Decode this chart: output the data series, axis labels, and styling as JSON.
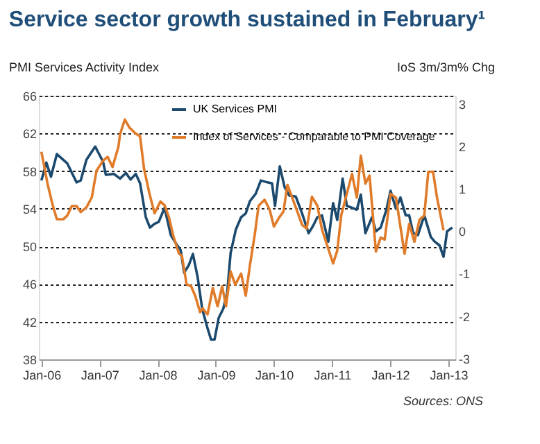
{
  "chart_data": {
    "type": "line",
    "title": "Service sector growth sustained in February¹",
    "ylabel": "PMI Services Activity Index",
    "y2label": "IoS 3m/3m% Chg",
    "annotations": [
      "Sources: ONS"
    ],
    "xlim": [
      "2005-12-16",
      "2013-02-14"
    ],
    "xticks": [
      {
        "value": "2006-01",
        "label": "Jan-06"
      },
      {
        "value": "2007-01",
        "label": "Jan-07"
      },
      {
        "value": "2008-01",
        "label": "Jan-08"
      },
      {
        "value": "2009-01",
        "label": "Jan-09"
      },
      {
        "value": "2010-01",
        "label": "Jan-10"
      },
      {
        "value": "2011-01",
        "label": "Jan-11"
      },
      {
        "value": "2012-01",
        "label": "Jan-12"
      },
      {
        "value": "2013-01",
        "label": "Jan-13"
      }
    ],
    "ylim": [
      38,
      66
    ],
    "yticks": [
      38,
      42,
      46,
      50,
      54,
      58,
      62,
      66
    ],
    "y2lim": [
      -3.02,
      3.19
    ],
    "y2ticks": [
      -3,
      -2,
      -1,
      0,
      1,
      2,
      3
    ],
    "grid": "y",
    "legend": "top right",
    "line_style": "solid",
    "marker": "none",
    "series": [
      {
        "name": "UK Services PMI",
        "color": "#1c4a6e",
        "axis": "y",
        "x": [
          "2006-01-01",
          "2006-02-01",
          "2006-03-02",
          "2006-04-08",
          "2006-06-13",
          "2006-08-10",
          "2006-09-05",
          "2006-10-11",
          "2006-12-05",
          "2007-01-23",
          "2007-02-10",
          "2007-04-01",
          "2007-05-10",
          "2007-06-16",
          "2007-07-15",
          "2007-08-17",
          "2007-09-13",
          "2007-10-19",
          "2007-11-14",
          "2007-12-13",
          "2008-01-08",
          "2008-02-14",
          "2008-03-24",
          "2008-04-30",
          "2008-05-25",
          "2008-06-16",
          "2008-07-15",
          "2008-08-10",
          "2008-09-09",
          "2008-10-08",
          "2008-11-10",
          "2008-12-02",
          "2008-12-24",
          "2009-01-19",
          "2009-02-17",
          "2009-03-13",
          "2009-04-04",
          "2009-05-07",
          "2009-06-09",
          "2009-07-08",
          "2009-08-03",
          "2009-09-09",
          "2009-10-11",
          "2009-11-21",
          "2009-12-20",
          "2010-01-08",
          "2010-02-07",
          "2010-03-09",
          "2010-04-08",
          "2010-05-18",
          "2010-06-27",
          "2010-08-07",
          "2010-09-05",
          "2010-10-01",
          "2010-10-30",
          "2010-12-09",
          "2011-01-08",
          "2011-02-03",
          "2011-03-09",
          "2011-04-04",
          "2011-05-07",
          "2011-06-06",
          "2011-07-01",
          "2011-07-30",
          "2011-09-09",
          "2011-10-04",
          "2011-11-03",
          "2011-12-09",
          "2012-01-04",
          "2012-02-07",
          "2012-03-06",
          "2012-04-08",
          "2012-04-30",
          "2012-05-25",
          "2012-06-24",
          "2012-08-03",
          "2012-09-13",
          "2012-10-08",
          "2012-11-07",
          "2012-12-02",
          "2012-12-24",
          "2013-01-26"
        ],
        "values": [
          57.0,
          58.9,
          57.4,
          59.8,
          58.8,
          56.8,
          57.0,
          59.2,
          60.6,
          59.0,
          57.6,
          57.7,
          57.2,
          57.8,
          57.1,
          57.7,
          56.7,
          53.1,
          52.0,
          52.4,
          52.6,
          54.1,
          51.2,
          50.2,
          49.6,
          47.2,
          48.0,
          49.2,
          46.7,
          43.3,
          41.3,
          40.1,
          40.1,
          42.4,
          43.4,
          45.0,
          49.3,
          51.8,
          53.1,
          53.5,
          54.8,
          55.6,
          57.0,
          56.8,
          56.7,
          54.3,
          58.5,
          56.3,
          55.4,
          55.3,
          53.5,
          51.4,
          52.2,
          53.1,
          53.3,
          50.5,
          54.6,
          52.8,
          57.2,
          54.3,
          54.1,
          53.9,
          55.5,
          51.4,
          53.1,
          51.6,
          52.0,
          53.9,
          55.9,
          54.0,
          55.2,
          53.3,
          53.3,
          51.4,
          51.2,
          53.3,
          51.0,
          50.5,
          50.1,
          48.9,
          51.6,
          52.0
        ]
      },
      {
        "name": "Index of Services - Comparable to PMI Coverage",
        "color": "#e07b2a",
        "axis": "y2",
        "x": [
          "2006-01-01",
          "2006-02-10",
          "2006-03-13",
          "2006-04-08",
          "2006-05-18",
          "2006-06-13",
          "2006-07-11",
          "2006-08-10",
          "2006-09-05",
          "2006-10-11",
          "2006-11-14",
          "2006-12-13",
          "2007-01-23",
          "2007-02-21",
          "2007-03-24",
          "2007-04-30",
          "2007-05-10",
          "2007-06-09",
          "2007-07-08",
          "2007-08-10",
          "2007-09-13",
          "2007-10-08",
          "2007-11-10",
          "2007-12-13",
          "2008-01-19",
          "2008-02-14",
          "2008-03-13",
          "2008-04-08",
          "2008-05-14",
          "2008-06-02",
          "2008-07-01",
          "2008-07-30",
          "2008-08-25",
          "2008-09-24",
          "2008-10-11",
          "2008-11-10",
          "2008-12-13",
          "2009-01-12",
          "2009-02-10",
          "2009-03-06",
          "2009-04-04",
          "2009-05-03",
          "2009-06-09",
          "2009-07-08",
          "2009-08-03",
          "2009-09-02",
          "2009-09-27",
          "2009-11-03",
          "2009-12-05",
          "2010-01-01",
          "2010-02-03",
          "2010-03-02",
          "2010-03-27",
          "2010-04-26",
          "2010-06-02",
          "2010-06-27",
          "2010-07-26",
          "2010-08-28",
          "2010-10-01",
          "2010-10-30",
          "2010-12-02",
          "2011-01-08",
          "2011-02-03",
          "2011-02-28",
          "2011-04-04",
          "2011-05-07",
          "2011-06-06",
          "2011-07-01",
          "2011-07-30",
          "2011-08-25",
          "2011-10-04",
          "2011-11-03",
          "2011-11-28",
          "2012-01-04",
          "2012-02-07",
          "2012-04-01",
          "2012-04-30",
          "2012-06-02",
          "2012-07-04",
          "2012-08-03",
          "2012-08-28",
          "2012-09-27",
          "2012-10-22",
          "2012-12-02"
        ],
        "values": [
          1.87,
          1.09,
          0.61,
          0.28,
          0.28,
          0.37,
          0.59,
          0.59,
          0.45,
          0.56,
          0.8,
          1.42,
          1.66,
          1.75,
          1.51,
          1.99,
          2.28,
          2.63,
          2.44,
          2.32,
          2.23,
          1.47,
          0.9,
          0.42,
          0.7,
          0.61,
          0.32,
          -0.1,
          -0.53,
          -0.58,
          -1.25,
          -1.3,
          -1.53,
          -1.91,
          -1.82,
          -1.96,
          -1.34,
          -1.77,
          -1.3,
          -1.77,
          -0.95,
          -1.26,
          -1.0,
          -1.52,
          -0.81,
          -0.1,
          0.6,
          0.74,
          0.51,
          0.11,
          0.32,
          0.46,
          1.09,
          0.79,
          0.41,
          0.15,
          0.06,
          0.81,
          0.6,
          0.04,
          -0.34,
          -0.76,
          -0.46,
          0.37,
          0.88,
          1.35,
          0.79,
          1.78,
          1.12,
          1.31,
          -0.48,
          -0.15,
          -0.2,
          0.88,
          0.79,
          -0.53,
          0.17,
          -0.25,
          0.27,
          0.37,
          1.4,
          1.4,
          0.79,
          0.02
        ]
      }
    ]
  }
}
